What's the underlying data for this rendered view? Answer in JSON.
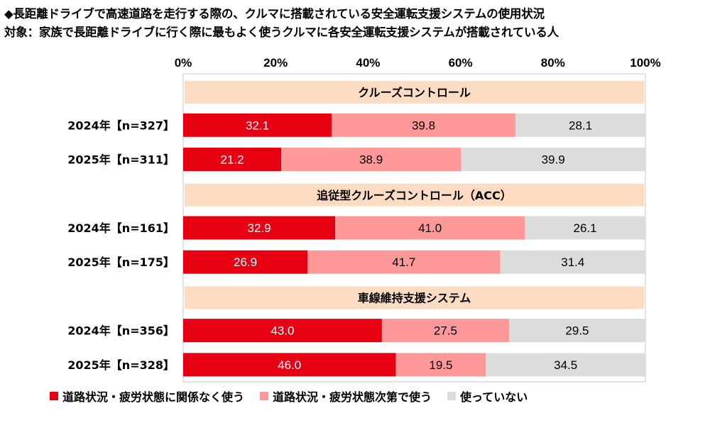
{
  "title_line1": "◆長距離ドライブで高速道路を走行する際の、クルマに搭載されている安全運転支援システムの使用状況",
  "title_line2": "対象：家族で長距離ドライブに行く際に最もよく使うクルマに各安全運転支援システムが搭載されている人",
  "colors": {
    "series": [
      "#e60012",
      "#ff9999",
      "#dcdcdc"
    ],
    "group_band": "#fbdcc3",
    "plot_border": "#c9c9c9"
  },
  "chart_data": {
    "type": "bar",
    "orientation": "horizontal",
    "stacked": "percent",
    "x_ticks": [
      "0%",
      "20%",
      "40%",
      "60%",
      "80%",
      "100%"
    ],
    "xlim": [
      0,
      100
    ],
    "legend_position": "bottom",
    "series": [
      {
        "name": "道路状況・疲労状態に関係なく使う",
        "values": [
          32.1,
          21.2,
          32.9,
          26.9,
          43.0,
          46.0
        ]
      },
      {
        "name": "道路状況・疲労状態次第で使う",
        "values": [
          39.8,
          38.9,
          41.0,
          41.7,
          27.5,
          19.5
        ]
      },
      {
        "name": "使っていない",
        "values": [
          28.1,
          39.9,
          26.1,
          31.4,
          29.5,
          34.5
        ]
      }
    ],
    "groups": [
      {
        "label": "クルーズコントロール",
        "categories": [
          "2024年【n=327】",
          "2025年【n=311】"
        ]
      },
      {
        "label": "追従型クルーズコントロール（ACC）",
        "categories": [
          "2024年【n=161】",
          "2025年【n=175】"
        ]
      },
      {
        "label": "車線維持支援システム",
        "categories": [
          "2024年【n=356】",
          "2025年【n=328】"
        ]
      }
    ]
  }
}
